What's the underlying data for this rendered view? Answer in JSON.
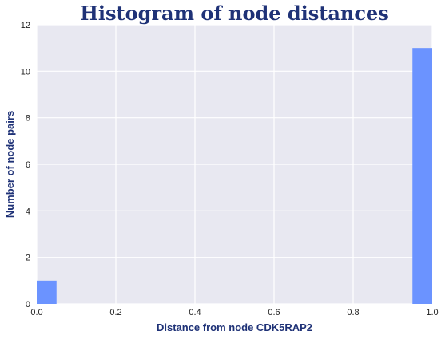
{
  "chart_data": {
    "type": "bar",
    "title": "Histogram of node distances",
    "xlabel": "Distance from node CDK5RAP2",
    "ylabel": "Number of node pairs",
    "xlim": [
      0.0,
      1.0
    ],
    "ylim": [
      0,
      12
    ],
    "x_ticks": [
      "0.0",
      "0.2",
      "0.4",
      "0.6",
      "0.8",
      "1.0"
    ],
    "y_ticks": [
      "0",
      "2",
      "4",
      "6",
      "8",
      "10",
      "12"
    ],
    "bins": [
      {
        "start": 0.0,
        "end": 0.05,
        "count": 1
      },
      {
        "start": 0.95,
        "end": 1.0,
        "count": 11
      }
    ],
    "grid": true,
    "colors": {
      "bar": "#6b93ff",
      "plot_background": "#e8e8f1",
      "grid": "#ffffff",
      "title": "#1f3277",
      "axis_label": "#1f3277"
    }
  }
}
